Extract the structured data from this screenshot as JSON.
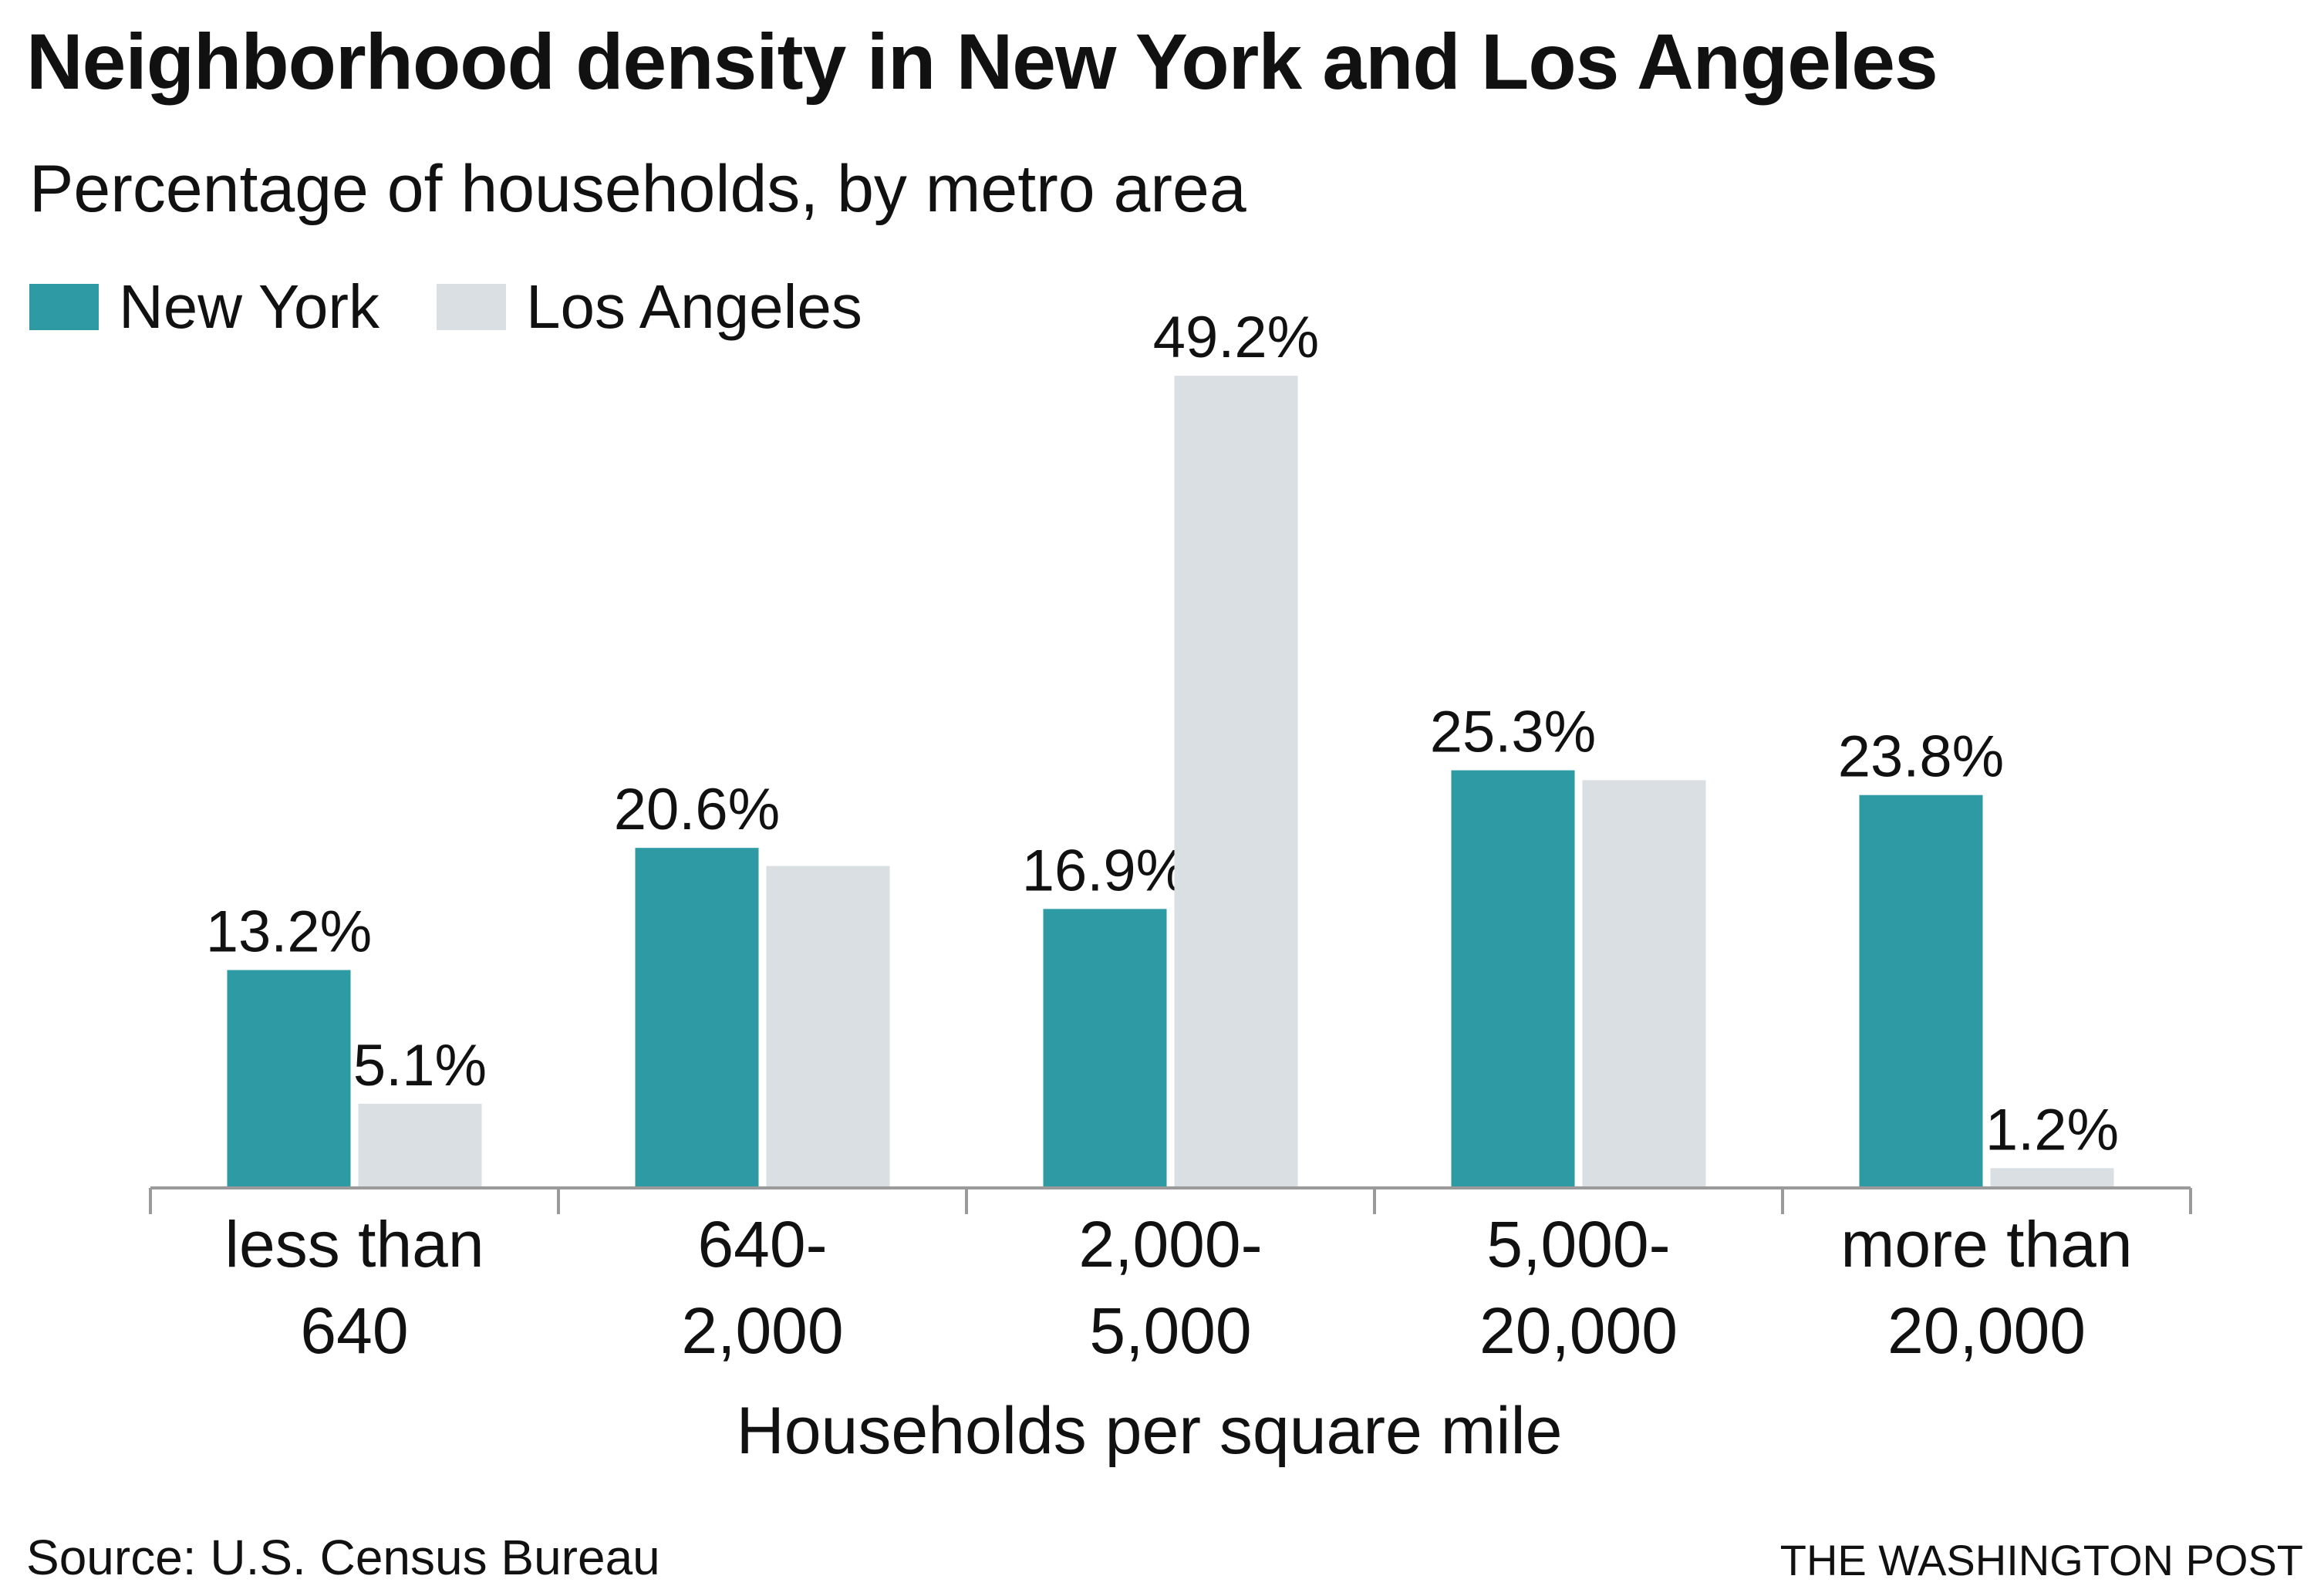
{
  "header": {
    "title": "Neighborhood density in New York and Los Angeles",
    "subtitle": "Percentage of households, by metro area"
  },
  "footer": {
    "source": "Source: U.S. Census Bureau",
    "credit": "THE WASHINGTON POST"
  },
  "colors": {
    "new_york": "#2e9aa4",
    "los_angeles": "#d9dfe2",
    "axis": "#9a9a9a"
  },
  "chart_data": {
    "type": "bar",
    "title": "Neighborhood density in New York and Los Angeles",
    "subtitle": "Percentage of households, by metro area",
    "xlabel": "Households per square mile",
    "ylabel": "",
    "categories": [
      [
        "less than",
        "640"
      ],
      [
        "640-",
        "2,000"
      ],
      [
        "2,000-",
        "5,000"
      ],
      [
        "5,000-",
        "20,000"
      ],
      [
        "more than",
        "20,000"
      ]
    ],
    "series": [
      {
        "name": "New York",
        "values": [
          13.2,
          20.6,
          16.9,
          25.3,
          23.8
        ],
        "labels": [
          "13.2%",
          "20.6%",
          "16.9%",
          "25.3%",
          "23.8%"
        ],
        "show_label": [
          true,
          true,
          true,
          true,
          true
        ]
      },
      {
        "name": "Los Angeles",
        "values": [
          5.1,
          19.5,
          49.2,
          24.7,
          1.2
        ],
        "labels": [
          "5.1%",
          "",
          "49.2%",
          "",
          "1.2%"
        ],
        "show_label": [
          true,
          false,
          true,
          false,
          true
        ]
      }
    ],
    "ylim": [
      0,
      50
    ],
    "grid": false,
    "legend_position": "top-left"
  }
}
